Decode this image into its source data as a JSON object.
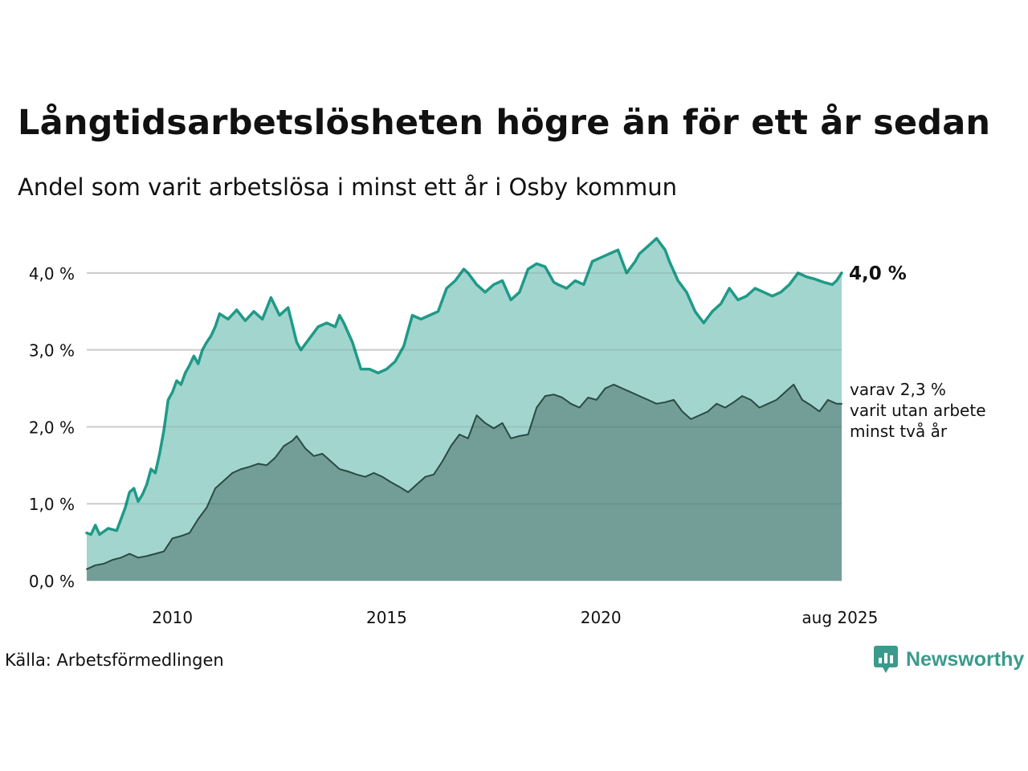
{
  "header": {
    "title": "Långtidsarbetslösheten högre än för ett år sedan",
    "subtitle": "Andel som varit arbetslösa i minst ett år i Osby kommun"
  },
  "footer": {
    "source": "Källa: Arbetsförmedlingen",
    "brand": "Newsworthy"
  },
  "colors": {
    "total_line": "#1f9a87",
    "total_fill": "#a3d5cf",
    "two_year_line": "#2a4a44",
    "two_year_fill": "#739e97",
    "grid": "#dddddd",
    "brand": "#3a9b8c"
  },
  "icons": {
    "brand_logo": "newsworthy-chart-bubble-icon"
  },
  "chart_data": {
    "type": "area",
    "title": "Långtidsarbetslösheten högre än för ett år sedan",
    "subtitle": "Andel som varit arbetslösa i minst ett år i Osby kommun",
    "x_unit": "year (decimal)",
    "y_unit": "percent",
    "xlim": [
      2008.0,
      2025.62
    ],
    "ylim": [
      0,
      4.5
    ],
    "y_ticks": [
      {
        "value": 0,
        "label": "0,0 %"
      },
      {
        "value": 1,
        "label": "1,0 %"
      },
      {
        "value": 2,
        "label": "2,0 %"
      },
      {
        "value": 3,
        "label": "3,0 %"
      },
      {
        "value": 4,
        "label": "4,0 %"
      }
    ],
    "x_ticks": [
      {
        "value": 2010,
        "label": "2010"
      },
      {
        "value": 2015,
        "label": "2015"
      },
      {
        "value": 2020,
        "label": "2020"
      },
      {
        "value": 2025.58,
        "label": "aug 2025"
      }
    ],
    "grid": true,
    "legend": "none",
    "end_labels": {
      "total": "4,0 %",
      "two_year": [
        "varav 2,3 %",
        "varit utan arbete",
        "minst två år"
      ]
    },
    "series": [
      {
        "key": "total",
        "x": [
          2008.0,
          2008.1,
          2008.2,
          2008.3,
          2008.5,
          2008.7,
          2008.9,
          2009.0,
          2009.1,
          2009.2,
          2009.3,
          2009.4,
          2009.5,
          2009.6,
          2009.7,
          2009.8,
          2009.9,
          2010.0,
          2010.1,
          2010.2,
          2010.3,
          2010.4,
          2010.5,
          2010.6,
          2010.7,
          2010.8,
          2010.9,
          2011.0,
          2011.1,
          2011.3,
          2011.5,
          2011.7,
          2011.9,
          2012.1,
          2012.3,
          2012.5,
          2012.7,
          2012.9,
          2013.0,
          2013.2,
          2013.4,
          2013.6,
          2013.8,
          2013.9,
          2014.0,
          2014.2,
          2014.4,
          2014.6,
          2014.8,
          2015.0,
          2015.2,
          2015.4,
          2015.6,
          2015.8,
          2016.0,
          2016.2,
          2016.4,
          2016.6,
          2016.8,
          2016.9,
          2017.1,
          2017.3,
          2017.5,
          2017.7,
          2017.9,
          2018.1,
          2018.3,
          2018.5,
          2018.7,
          2018.9,
          2019.0,
          2019.2,
          2019.4,
          2019.6,
          2019.8,
          2020.0,
          2020.2,
          2020.4,
          2020.6,
          2020.8,
          2020.9,
          2021.1,
          2021.3,
          2021.5,
          2021.6,
          2021.8,
          2022.0,
          2022.2,
          2022.4,
          2022.6,
          2022.8,
          2023.0,
          2023.2,
          2023.4,
          2023.6,
          2023.8,
          2024.0,
          2024.2,
          2024.4,
          2024.6,
          2024.8,
          2025.0,
          2025.2,
          2025.4,
          2025.5,
          2025.62
        ],
        "values": [
          0.62,
          0.6,
          0.72,
          0.6,
          0.68,
          0.65,
          0.95,
          1.15,
          1.2,
          1.03,
          1.12,
          1.25,
          1.45,
          1.4,
          1.65,
          1.95,
          2.35,
          2.45,
          2.6,
          2.55,
          2.7,
          2.8,
          2.92,
          2.82,
          3.0,
          3.1,
          3.18,
          3.3,
          3.47,
          3.4,
          3.52,
          3.38,
          3.5,
          3.4,
          3.68,
          3.45,
          3.55,
          3.1,
          3.0,
          3.15,
          3.3,
          3.35,
          3.3,
          3.45,
          3.35,
          3.1,
          2.75,
          2.75,
          2.7,
          2.75,
          2.85,
          3.05,
          3.45,
          3.4,
          3.45,
          3.5,
          3.8,
          3.9,
          4.05,
          4.0,
          3.85,
          3.75,
          3.85,
          3.9,
          3.65,
          3.75,
          4.05,
          4.12,
          4.08,
          3.88,
          3.85,
          3.8,
          3.9,
          3.85,
          4.15,
          4.2,
          4.25,
          4.3,
          4.0,
          4.15,
          4.25,
          4.35,
          4.45,
          4.3,
          4.15,
          3.9,
          3.75,
          3.5,
          3.35,
          3.5,
          3.6,
          3.8,
          3.65,
          3.7,
          3.8,
          3.75,
          3.7,
          3.75,
          3.85,
          4.0,
          3.95,
          3.92,
          3.88,
          3.85,
          3.9,
          4.0
        ]
      },
      {
        "key": "two_year",
        "x": [
          2008.0,
          2008.2,
          2008.4,
          2008.6,
          2008.8,
          2009.0,
          2009.2,
          2009.4,
          2009.6,
          2009.8,
          2010.0,
          2010.2,
          2010.4,
          2010.6,
          2010.8,
          2011.0,
          2011.2,
          2011.4,
          2011.6,
          2011.8,
          2012.0,
          2012.2,
          2012.4,
          2012.6,
          2012.8,
          2012.9,
          2013.1,
          2013.3,
          2013.5,
          2013.7,
          2013.9,
          2014.1,
          2014.3,
          2014.5,
          2014.7,
          2014.9,
          2015.1,
          2015.3,
          2015.5,
          2015.7,
          2015.9,
          2016.1,
          2016.3,
          2016.5,
          2016.7,
          2016.9,
          2017.1,
          2017.3,
          2017.5,
          2017.7,
          2017.9,
          2018.1,
          2018.3,
          2018.5,
          2018.7,
          2018.9,
          2019.1,
          2019.3,
          2019.5,
          2019.7,
          2019.9,
          2020.1,
          2020.3,
          2020.5,
          2020.7,
          2020.9,
          2021.1,
          2021.3,
          2021.5,
          2021.7,
          2021.9,
          2022.1,
          2022.3,
          2022.5,
          2022.7,
          2022.9,
          2023.1,
          2023.3,
          2023.5,
          2023.7,
          2023.9,
          2024.1,
          2024.3,
          2024.5,
          2024.7,
          2024.9,
          2025.1,
          2025.3,
          2025.5,
          2025.62
        ],
        "values": [
          0.15,
          0.2,
          0.22,
          0.27,
          0.3,
          0.35,
          0.3,
          0.32,
          0.35,
          0.38,
          0.55,
          0.58,
          0.62,
          0.8,
          0.95,
          1.2,
          1.3,
          1.4,
          1.45,
          1.48,
          1.52,
          1.5,
          1.6,
          1.75,
          1.82,
          1.88,
          1.72,
          1.62,
          1.65,
          1.55,
          1.45,
          1.42,
          1.38,
          1.35,
          1.4,
          1.35,
          1.28,
          1.22,
          1.15,
          1.25,
          1.35,
          1.38,
          1.55,
          1.75,
          1.9,
          1.85,
          2.15,
          2.05,
          1.98,
          2.05,
          1.85,
          1.88,
          1.9,
          2.25,
          2.4,
          2.42,
          2.38,
          2.3,
          2.25,
          2.38,
          2.35,
          2.5,
          2.55,
          2.5,
          2.45,
          2.4,
          2.35,
          2.3,
          2.32,
          2.35,
          2.2,
          2.1,
          2.15,
          2.2,
          2.3,
          2.25,
          2.32,
          2.4,
          2.35,
          2.25,
          2.3,
          2.35,
          2.45,
          2.55,
          2.35,
          2.28,
          2.2,
          2.35,
          2.3,
          2.3
        ]
      }
    ]
  }
}
